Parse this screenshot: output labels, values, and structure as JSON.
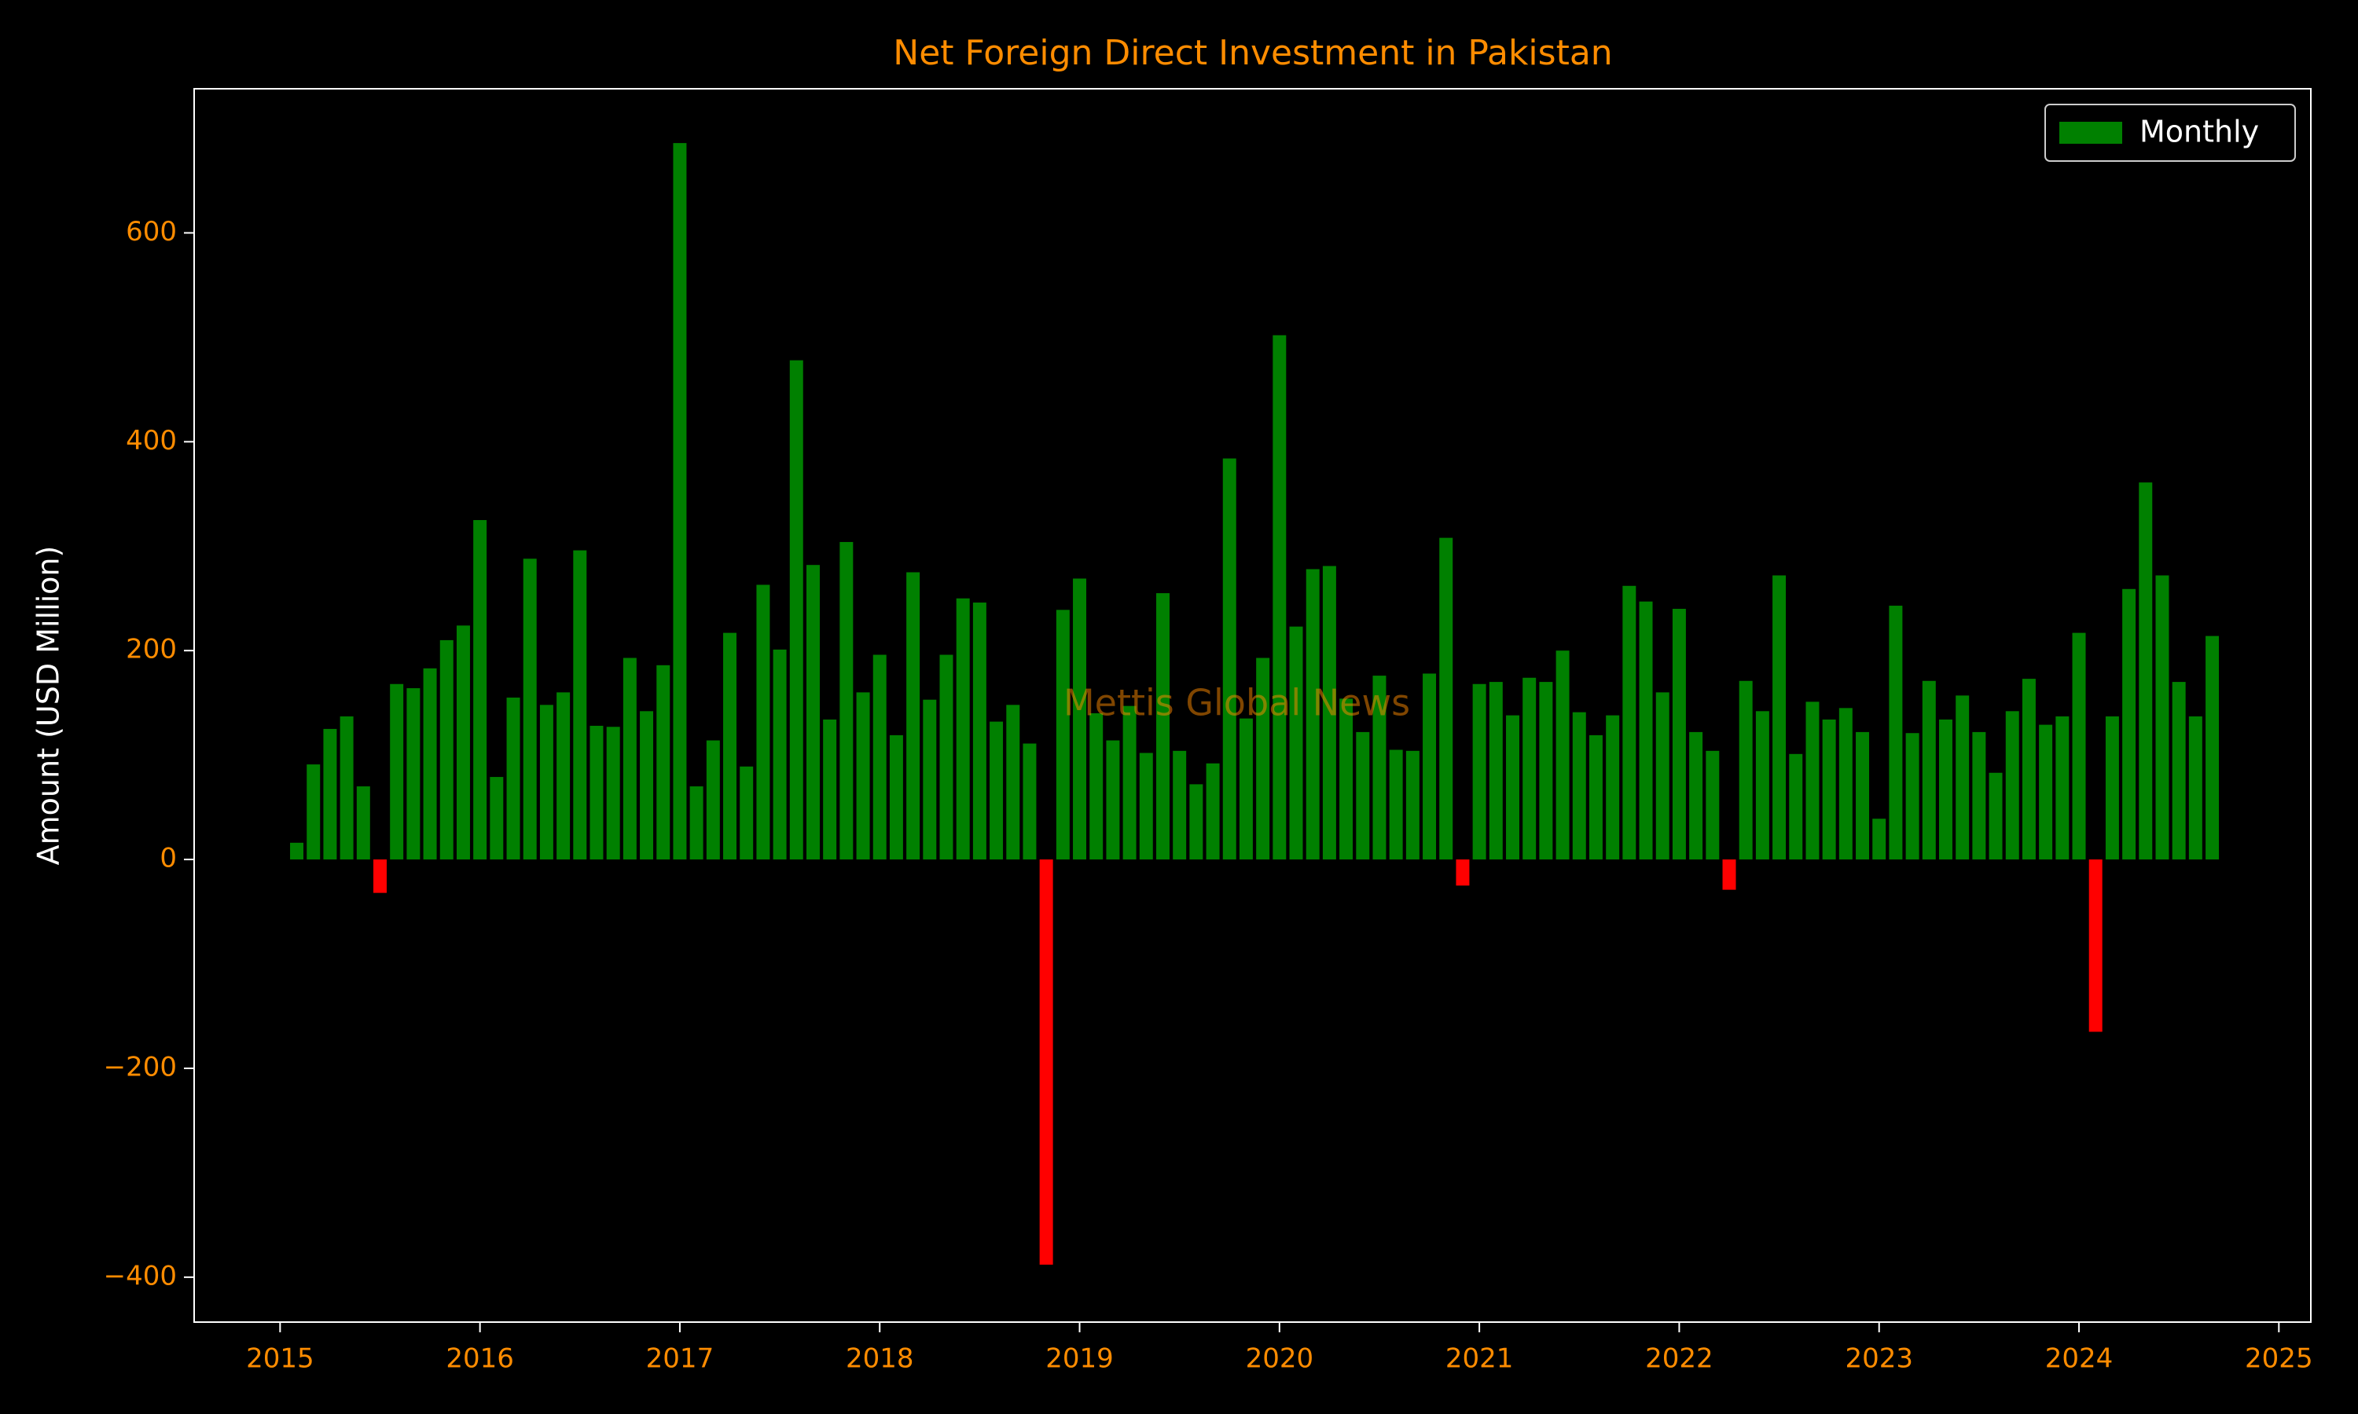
{
  "chart_data": {
    "type": "bar",
    "title": "Net Foreign Direct Investment in Pakistan",
    "y_label": "Amount (USD Million)",
    "watermark": "Mettis Global News",
    "legend": "upper right",
    "x": [
      2015.0833,
      2015.1667,
      2015.25,
      2015.3333,
      2015.4167,
      2015.5,
      2015.5833,
      2015.6667,
      2015.75,
      2015.8333,
      2015.9167,
      2016.0,
      2016.0833,
      2016.1667,
      2016.25,
      2016.3333,
      2016.4167,
      2016.5,
      2016.5833,
      2016.6667,
      2016.75,
      2016.8333,
      2016.9167,
      2017.0,
      2017.0833,
      2017.1667,
      2017.25,
      2017.3333,
      2017.4167,
      2017.5,
      2017.5833,
      2017.6667,
      2017.75,
      2017.8333,
      2017.9167,
      2018.0,
      2018.0833,
      2018.1667,
      2018.25,
      2018.3333,
      2018.4167,
      2018.5,
      2018.5833,
      2018.6667,
      2018.75,
      2018.8333,
      2018.9167,
      2019.0,
      2019.0833,
      2019.1667,
      2019.25,
      2019.3333,
      2019.4167,
      2019.5,
      2019.5833,
      2019.6667,
      2019.75,
      2019.8333,
      2019.9167,
      2020.0,
      2020.0833,
      2020.1667,
      2020.25,
      2020.3333,
      2020.4167,
      2020.5,
      2020.5833,
      2020.6667,
      2020.75,
      2020.8333,
      2020.9167,
      2021.0,
      2021.0833,
      2021.1667,
      2021.25,
      2021.3333,
      2021.4167,
      2021.5,
      2021.5833,
      2021.6667,
      2021.75,
      2021.8333,
      2021.9167,
      2022.0,
      2022.0833,
      2022.1667,
      2022.25,
      2022.3333,
      2022.4167,
      2022.5,
      2022.5833,
      2022.6667,
      2022.75,
      2022.8333,
      2022.9167,
      2023.0,
      2023.0833,
      2023.1667,
      2023.25,
      2023.3333,
      2023.4167,
      2023.5,
      2023.5833,
      2023.6667,
      2023.75,
      2023.8333,
      2023.9167,
      2024.0,
      2024.0833,
      2024.1667,
      2024.25,
      2024.3333,
      2024.4167,
      2024.5,
      2024.5833,
      2024.6667
    ],
    "series": [
      {
        "name": "Monthly",
        "color": "#008000",
        "negative_color": "#ff0000",
        "values": [
          16,
          91,
          125,
          137,
          70,
          -32,
          168,
          164,
          183,
          210,
          224,
          325,
          79,
          155,
          288,
          148,
          160,
          296,
          128,
          127,
          193,
          142,
          186,
          686,
          70,
          114,
          217,
          89,
          263,
          201,
          478,
          282,
          134,
          304,
          160,
          196,
          119,
          275,
          153,
          196,
          250,
          246,
          132,
          148,
          111,
          -388,
          239,
          269,
          140,
          114,
          147,
          102,
          255,
          104,
          72,
          92,
          384,
          135,
          193,
          502,
          223,
          278,
          281,
          154,
          122,
          176,
          105,
          104,
          178,
          308,
          -25,
          168,
          170,
          138,
          174,
          170,
          200,
          141,
          119,
          138,
          262,
          247,
          160,
          240,
          122,
          104,
          -29,
          171,
          142,
          272,
          101,
          151,
          134,
          145,
          122,
          39,
          243,
          121,
          171,
          134,
          157,
          122,
          83,
          142,
          173,
          129,
          137,
          217,
          -165,
          137,
          259,
          361,
          272,
          170,
          137,
          214
        ]
      }
    ],
    "xlim": [
      2014.57,
      2025.16
    ],
    "xticks": [
      2015,
      2016,
      2017,
      2018,
      2019,
      2020,
      2021,
      2022,
      2023,
      2024,
      2025
    ],
    "ylim": [
      -443,
      738
    ],
    "yticks": [
      {
        "value": -400,
        "label": "−400"
      },
      {
        "value": -200,
        "label": "−200"
      },
      0,
      200,
      400,
      600
    ]
  }
}
